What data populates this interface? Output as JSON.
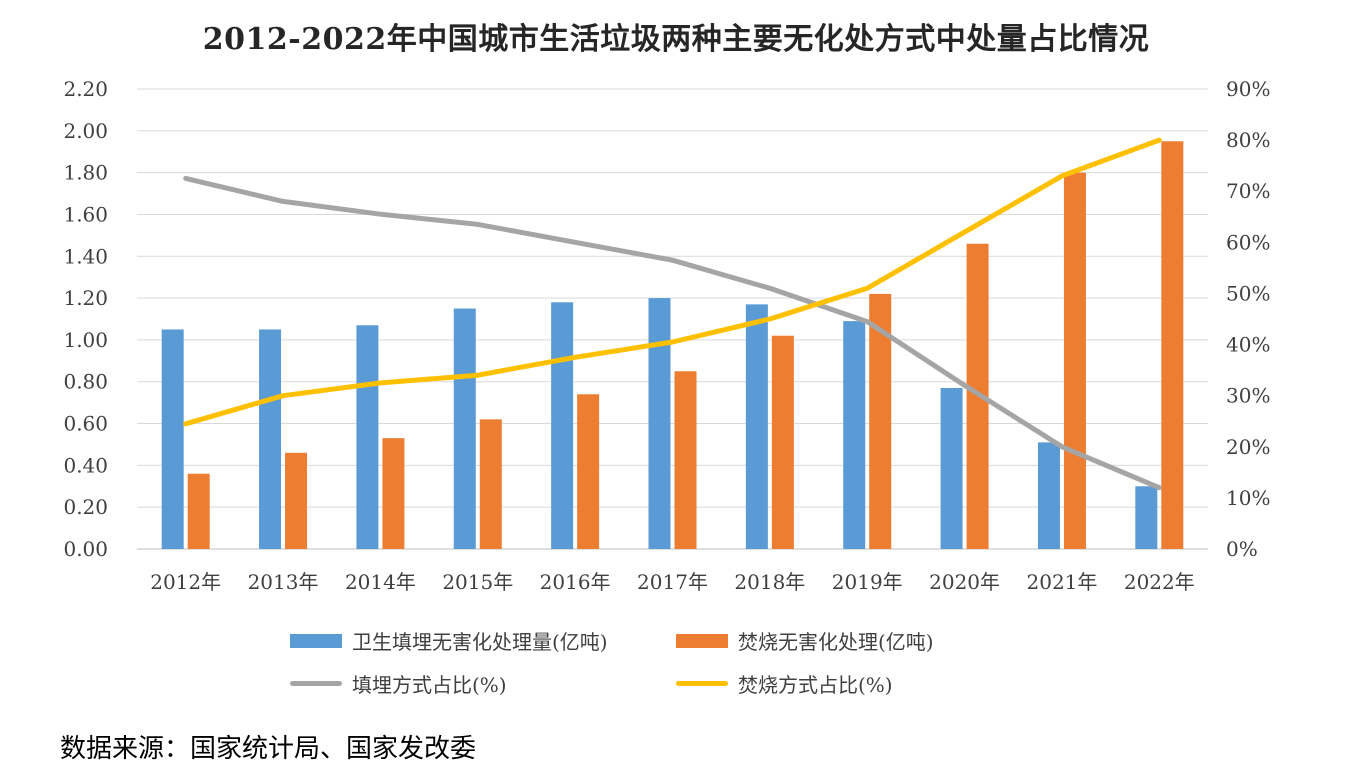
{
  "chart_data": {
    "type": "bar+line",
    "title": "2012-2022年中国城市生活垃圾两种主要无化处方式中处量占比情况",
    "categories": [
      "2012年",
      "2013年",
      "2014年",
      "2015年",
      "2016年",
      "2017年",
      "2018年",
      "2019年",
      "2020年",
      "2021年",
      "2022年"
    ],
    "y_left": {
      "min": 0,
      "max": 2.2,
      "step": 0.2,
      "tick_labels": [
        "0.00",
        "0.20",
        "0.40",
        "0.60",
        "0.80",
        "1.00",
        "1.20",
        "1.40",
        "1.60",
        "1.80",
        "2.00",
        "2.20"
      ]
    },
    "y_right": {
      "min": 0,
      "max": 90,
      "step": 10,
      "tick_labels": [
        "0%",
        "10%",
        "20%",
        "30%",
        "40%",
        "50%",
        "60%",
        "70%",
        "80%",
        "90%"
      ]
    },
    "grid": true,
    "legend_position": "bottom",
    "series": [
      {
        "name": "卫生填埋无害化处理量(亿吨)",
        "kind": "bar",
        "axis": "left",
        "color": "#5B9BD5",
        "values": [
          1.05,
          1.05,
          1.07,
          1.15,
          1.18,
          1.2,
          1.17,
          1.09,
          0.77,
          0.51,
          0.3
        ]
      },
      {
        "name": "焚烧无害化处理(亿吨)",
        "kind": "bar",
        "axis": "left",
        "color": "#ED7D31",
        "values": [
          0.36,
          0.46,
          0.53,
          0.62,
          0.74,
          0.85,
          1.02,
          1.22,
          1.46,
          1.8,
          1.95
        ]
      },
      {
        "name": "填埋方式占比(%)",
        "kind": "line",
        "axis": "right",
        "color": "#A5A5A5",
        "values": [
          72.5,
          68,
          65.5,
          63.5,
          60,
          56.5,
          51,
          44.5,
          32,
          20,
          12
        ]
      },
      {
        "name": "焚烧方式占比(%)",
        "kind": "line",
        "axis": "right",
        "color": "#FFC000",
        "values": [
          24.5,
          30,
          32.5,
          34,
          37.5,
          40.5,
          45,
          51,
          62,
          73,
          80
        ]
      }
    ]
  },
  "source_note": "数据来源：国家统计局、国家发改委"
}
